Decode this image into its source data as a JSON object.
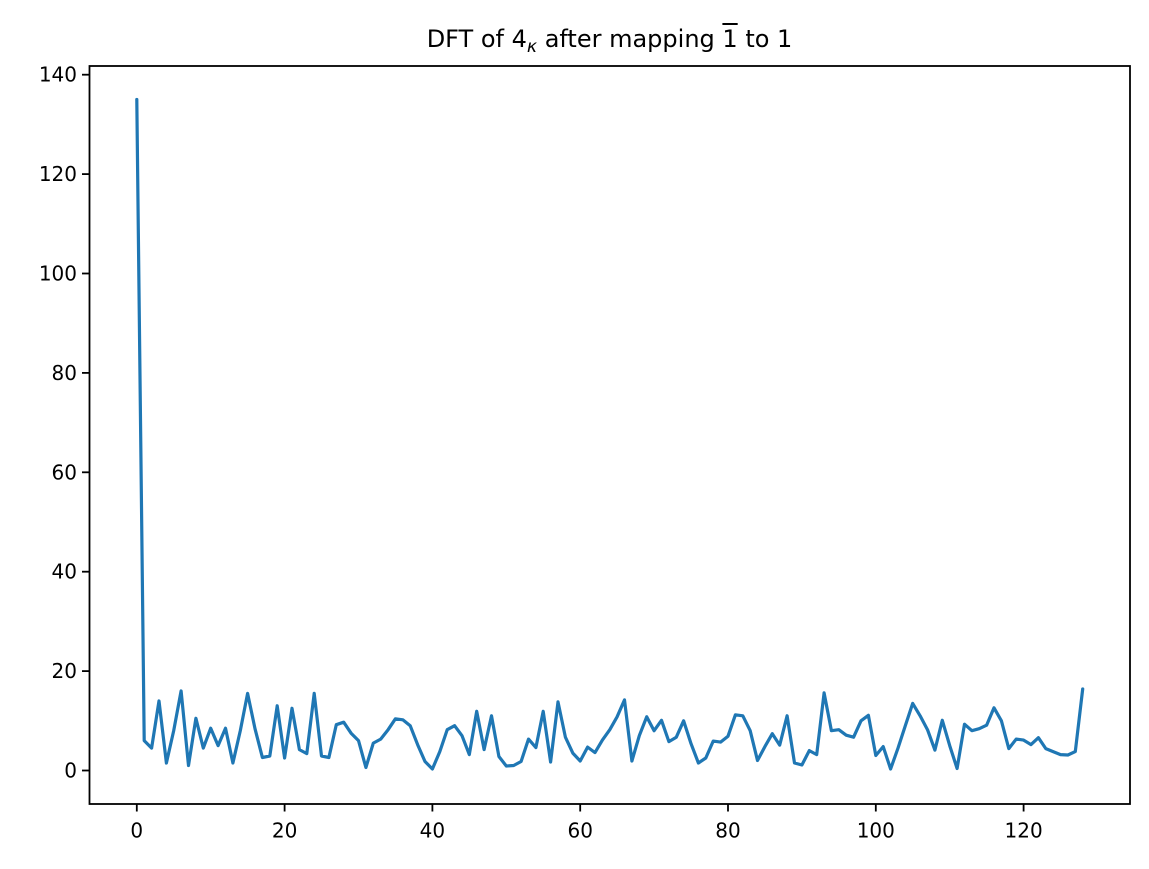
{
  "figure": {
    "background": "#ffffff",
    "title": {
      "full": "DFT of 4_κ after mapping 1̄ to 1",
      "prefix": "DFT of 4",
      "subscript": "κ",
      "middle": " after mapping ",
      "overbar": "1",
      "suffix": " to 1"
    }
  },
  "chart_data": {
    "type": "line",
    "title": "DFT of 4_κ after mapping 1̄ to 1",
    "xlabel": "",
    "ylabel": "",
    "legend": null,
    "grid": false,
    "line_color": "#1f77b4",
    "axis_color": "#000000",
    "xlim": [
      -6.4,
      134.4
    ],
    "ylim": [
      -6.75,
      141.75
    ],
    "xticks": [
      0,
      20,
      40,
      60,
      80,
      100,
      120
    ],
    "yticks": [
      0,
      20,
      40,
      60,
      80,
      100,
      120,
      140
    ],
    "x_start": 0,
    "x_step": 1,
    "values": [
      135,
      6,
      4.5,
      14,
      1.5,
      8,
      16,
      1,
      10.5,
      4.5,
      8.5,
      5,
      8.5,
      1.5,
      8,
      15.5,
      8.4,
      2.6,
      2.9,
      13,
      2.5,
      12.5,
      4.2,
      3.4,
      15.5,
      2.9,
      2.6,
      9.2,
      9.7,
      7.5,
      6,
      0.6,
      5.5,
      6.3,
      8.2,
      10.4,
      10.2,
      9,
      5.2,
      1.8,
      0.3,
      3.8,
      8.2,
      9,
      7,
      3.2,
      11.9,
      4.2,
      11,
      2.8,
      0.9,
      1,
      1.8,
      6.3,
      4.6,
      11.9,
      1.7,
      13.8,
      6.7,
      3.5,
      1.9,
      4.7,
      3.6,
      6.1,
      8.2,
      10.8,
      14.2,
      1.9,
      7,
      10.8,
      8,
      10.1,
      5.8,
      6.7,
      10,
      5.4,
      1.5,
      2.5,
      5.9,
      5.7,
      6.9,
      11.2,
      11,
      8,
      2,
      4.8,
      7.4,
      5.1,
      11,
      1.5,
      1.1,
      4,
      3.2,
      15.6,
      8,
      8.2,
      7.1,
      6.7,
      10,
      11.1,
      3,
      4.8,
      0.3,
      4.5,
      9,
      13.5,
      11,
      8.2,
      4.1,
      10.1,
      5,
      0.4,
      9.3,
      8,
      8.4,
      9.1,
      12.6,
      10,
      4.4,
      6.3,
      6.1,
      5.2,
      6.6,
      4.4,
      3.8,
      3.2,
      3.1,
      3.8,
      16.4
    ]
  }
}
